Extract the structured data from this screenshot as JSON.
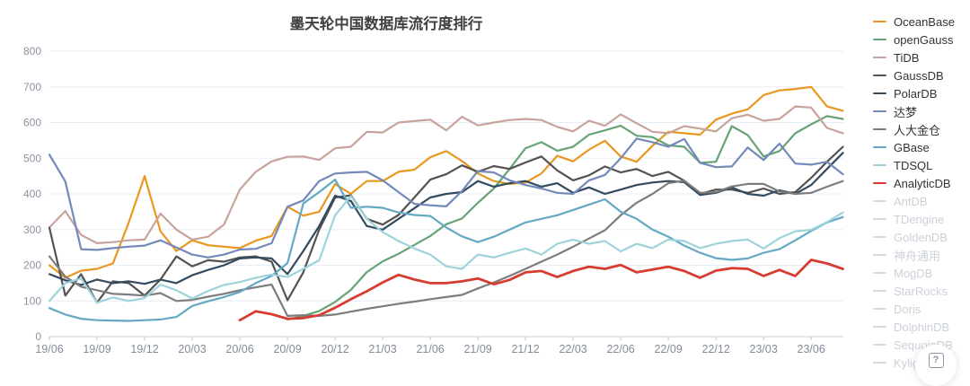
{
  "page": {
    "help_button_label": "?"
  },
  "chart_data": {
    "type": "line",
    "title": "墨天轮中国数据库流行度排行",
    "xlabel": "",
    "ylabel": "",
    "ylim": [
      0,
      800
    ],
    "y_ticks": [
      0,
      100,
      200,
      300,
      400,
      500,
      600,
      700,
      800
    ],
    "grid": true,
    "legend_position": "right",
    "x_tick_every": 3,
    "x_tick_labels": [
      "19/06",
      "19/09",
      "19/12",
      "20/03",
      "20/06",
      "20/09",
      "20/12",
      "21/03",
      "21/06",
      "21/09",
      "21/12",
      "22/03",
      "22/06",
      "22/09",
      "22/12",
      "23/03",
      "23/06"
    ],
    "months": [
      "19/06",
      "19/07",
      "19/08",
      "19/09",
      "19/10",
      "19/11",
      "19/12",
      "20/01",
      "20/02",
      "20/03",
      "20/04",
      "20/05",
      "20/06",
      "20/07",
      "20/08",
      "20/09",
      "20/10",
      "20/11",
      "20/12",
      "21/01",
      "21/02",
      "21/03",
      "21/04",
      "21/05",
      "21/06",
      "21/07",
      "21/08",
      "21/09",
      "21/10",
      "21/11",
      "21/12",
      "22/01",
      "22/02",
      "22/03",
      "22/04",
      "22/05",
      "22/06",
      "22/07",
      "22/08",
      "22/09",
      "22/10",
      "22/11",
      "22/12",
      "23/01",
      "23/02",
      "23/03",
      "23/04",
      "23/05",
      "23/06",
      "23/07",
      "23/08"
    ],
    "series": [
      {
        "name": "OceanBase",
        "color": "#e8981f",
        "enabled": true,
        "values": [
          200,
          165,
          185,
          190,
          205,
          320,
          450,
          295,
          240,
          270,
          256,
          252,
          248,
          269,
          282,
          364,
          339,
          350,
          428,
          400,
          436,
          436,
          462,
          468,
          503,
          520,
          492,
          457,
          436,
          428,
          432,
          457,
          507,
          491,
          524,
          549,
          505,
          490,
          535,
          574,
          570,
          566,
          608,
          625,
          637,
          677,
          690,
          694,
          700,
          645,
          633
        ]
      },
      {
        "name": "openGauss",
        "color": "#66a376",
        "enabled": true,
        "values": [
          null,
          null,
          null,
          null,
          null,
          null,
          null,
          null,
          null,
          null,
          null,
          null,
          null,
          null,
          null,
          48,
          58,
          72,
          97,
          131,
          181,
          211,
          232,
          257,
          282,
          315,
          331,
          375,
          415,
          470,
          528,
          545,
          521,
          532,
          566,
          578,
          591,
          563,
          559,
          536,
          532,
          487,
          490,
          590,
          565,
          505,
          520,
          570,
          595,
          618,
          610
        ]
      },
      {
        "name": "TiDB",
        "color": "#c7a39b",
        "enabled": true,
        "values": [
          306,
          352,
          285,
          262,
          265,
          270,
          272,
          345,
          300,
          272,
          280,
          314,
          412,
          462,
          491,
          504,
          505,
          495,
          528,
          532,
          574,
          572,
          600,
          604,
          608,
          578,
          616,
          592,
          600,
          607,
          610,
          607,
          588,
          575,
          605,
          591,
          623,
          598,
          574,
          570,
          590,
          583,
          575,
          612,
          622,
          605,
          610,
          645,
          642,
          585,
          570
        ]
      },
      {
        "name": "GaussDB",
        "color": "#525252",
        "enabled": true,
        "values": [
          305,
          115,
          175,
          95,
          155,
          150,
          115,
          160,
          225,
          197,
          214,
          210,
          222,
          225,
          210,
          102,
          180,
          300,
          390,
          396,
          330,
          314,
          341,
          390,
          440,
          455,
          480,
          462,
          478,
          470,
          488,
          505,
          466,
          438,
          452,
          477,
          460,
          470,
          450,
          462,
          437,
          400,
          412,
          412,
          403,
          415,
          400,
          405,
          445,
          490,
          532
        ]
      },
      {
        "name": "PolarDB",
        "color": "#344a5e",
        "enabled": true,
        "values": [
          175,
          158,
          145,
          160,
          150,
          155,
          148,
          160,
          150,
          172,
          187,
          200,
          219,
          222,
          219,
          175,
          240,
          310,
          395,
          380,
          310,
          300,
          330,
          360,
          390,
          400,
          405,
          436,
          420,
          430,
          436,
          420,
          430,
          403,
          418,
          400,
          412,
          425,
          432,
          436,
          433,
          397,
          403,
          418,
          400,
          395,
          410,
          400,
          425,
          470,
          515
        ]
      },
      {
        "name": "达梦",
        "color": "#7389b9",
        "enabled": true,
        "values": [
          510,
          435,
          245,
          243,
          248,
          252,
          255,
          270,
          250,
          230,
          222,
          230,
          244,
          246,
          262,
          364,
          382,
          436,
          457,
          460,
          462,
          438,
          405,
          372,
          368,
          365,
          408,
          464,
          460,
          438,
          425,
          415,
          403,
          400,
          438,
          453,
          500,
          555,
          545,
          532,
          554,
          487,
          475,
          477,
          530,
          495,
          541,
          485,
          482,
          490,
          455
        ]
      },
      {
        "name": "人大金仓",
        "color": "#7d7d7d",
        "enabled": true,
        "values": [
          225,
          168,
          140,
          130,
          120,
          118,
          115,
          122,
          100,
          103,
          112,
          120,
          130,
          138,
          146,
          58,
          60,
          58,
          62,
          70,
          78,
          85,
          92,
          98,
          105,
          111,
          117,
          135,
          152,
          170,
          190,
          210,
          230,
          252,
          275,
          298,
          340,
          375,
          400,
          430,
          437,
          403,
          405,
          421,
          428,
          428,
          407,
          400,
          403,
          420,
          436
        ]
      },
      {
        "name": "GBase",
        "color": "#64a8c4",
        "enabled": true,
        "values": [
          80,
          62,
          50,
          46,
          45,
          44,
          46,
          48,
          55,
          86,
          99,
          111,
          125,
          150,
          170,
          206,
          373,
          405,
          440,
          361,
          364,
          361,
          348,
          341,
          338,
          306,
          281,
          265,
          280,
          300,
          320,
          330,
          340,
          355,
          370,
          385,
          350,
          330,
          300,
          280,
          255,
          235,
          220,
          215,
          219,
          235,
          245,
          270,
          296,
          320,
          335
        ]
      },
      {
        "name": "TDSQL",
        "color": "#9dd3da",
        "enabled": true,
        "values": [
          100,
          150,
          163,
          95,
          110,
          100,
          108,
          146,
          130,
          107,
          128,
          145,
          153,
          165,
          174,
          167,
          190,
          214,
          340,
          394,
          330,
          293,
          268,
          247,
          230,
          197,
          190,
          230,
          222,
          235,
          247,
          230,
          260,
          272,
          260,
          268,
          239,
          260,
          248,
          272,
          268,
          248,
          260,
          268,
          272,
          247,
          276,
          295,
          299,
          321,
          348
        ]
      },
      {
        "name": "AnalyticDB",
        "color": "#d63c30",
        "enabled": true,
        "values": [
          null,
          null,
          null,
          null,
          null,
          null,
          null,
          null,
          null,
          null,
          null,
          null,
          46,
          71,
          63,
          50,
          52,
          60,
          81,
          105,
          127,
          152,
          173,
          160,
          150,
          150,
          155,
          163,
          147,
          159,
          180,
          184,
          167,
          184,
          196,
          190,
          201,
          180,
          188,
          196,
          184,
          165,
          185,
          192,
          190,
          170,
          187,
          170,
          215,
          205,
          190
        ]
      },
      {
        "name": "AntDB",
        "color": "#d5dae1",
        "enabled": false,
        "values": []
      },
      {
        "name": "TDengine",
        "color": "#d5dae1",
        "enabled": false,
        "values": []
      },
      {
        "name": "GoldenDB",
        "color": "#d5dae1",
        "enabled": false,
        "values": []
      },
      {
        "name": "神舟通用",
        "color": "#d5dae1",
        "enabled": false,
        "values": []
      },
      {
        "name": "MogDB",
        "color": "#d5dae1",
        "enabled": false,
        "values": []
      },
      {
        "name": "StarRocks",
        "color": "#d5dae1",
        "enabled": false,
        "values": []
      },
      {
        "name": "Doris",
        "color": "#d5dae1",
        "enabled": false,
        "values": []
      },
      {
        "name": "DolphinDB",
        "color": "#d5dae1",
        "enabled": false,
        "values": []
      },
      {
        "name": "SequoiaDB",
        "color": "#d5dae1",
        "enabled": false,
        "values": []
      },
      {
        "name": "Kyligence",
        "color": "#d5dae1",
        "enabled": false,
        "values": []
      }
    ]
  },
  "style_colors": {
    "grid_line": "#e7edf7",
    "axis_line": "#c9ccd2",
    "tick_mark": "#c0c4cc",
    "y_label": "#8b93a3",
    "x_label": "#848c99",
    "legend_text": "#333333",
    "legend_disabled_text": "#ccd1d9"
  }
}
